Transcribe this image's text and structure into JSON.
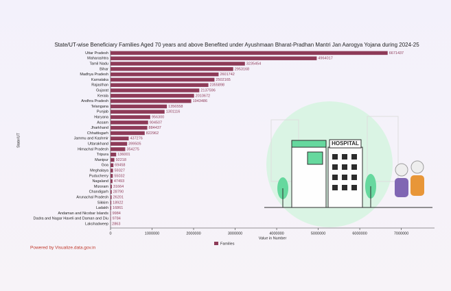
{
  "chart_data": {
    "type": "barh",
    "title": "State/UT-wise Beneficiary Families Aged 70 years and above Benefited under Ayushmaan Bharat-Pradhan Mantri Jan Aarogya Yojana during 2024-25",
    "xlabel": "Value in Number",
    "ylabel": "State/UT",
    "categories": [
      "Uttar Pradesh",
      "Maharashtra",
      "Tamil Nadu",
      "Bihar",
      "Madhya Pradesh",
      "Karnataka",
      "Rajasthan",
      "Gujarat",
      "Kerala",
      "Andhra Pradesh",
      "Telangana",
      "Punjab",
      "Haryana",
      "Assam",
      "Jharkhand",
      "Chhattisgarh",
      "Jammu and Kashmir",
      "Uttarakhand",
      "Himachal Pradesh",
      "Tripura",
      "Manipur",
      "Goa",
      "Meghalaya",
      "Puducherry",
      "Nagaland",
      "Mizoram",
      "Chandigarh",
      "Arunachal Pradesh",
      "Sikkim",
      "Ladakh",
      "Andaman and Nicobar Islands",
      "Dadra and Nagar Haveli and Daman and Diu",
      "Lakshadweep"
    ],
    "series": [
      {
        "name": "Families",
        "color": "#8e3b58",
        "values": [
          6671437,
          4964017,
          3235454,
          2953168,
          2601742,
          2502165,
          2355898,
          2137596,
          2010672,
          1943486,
          1356558,
          1301116,
          956300,
          904507,
          884437,
          822962,
          437276,
          399505,
          354275,
          136001,
          92218,
          69458,
          59327,
          55032,
          47493,
          31664,
          28790,
          26201,
          18922,
          16861,
          9984,
          9784,
          2863
        ]
      }
    ],
    "xlim": [
      0,
      7800000
    ],
    "xticks": [
      0,
      1000000,
      2000000,
      3000000,
      4000000,
      5000000,
      6000000,
      7000000
    ],
    "legend": "bottom",
    "credit": "Powered by Visualize.data.gov.in",
    "annotations": [
      "HOSPITAL"
    ]
  }
}
